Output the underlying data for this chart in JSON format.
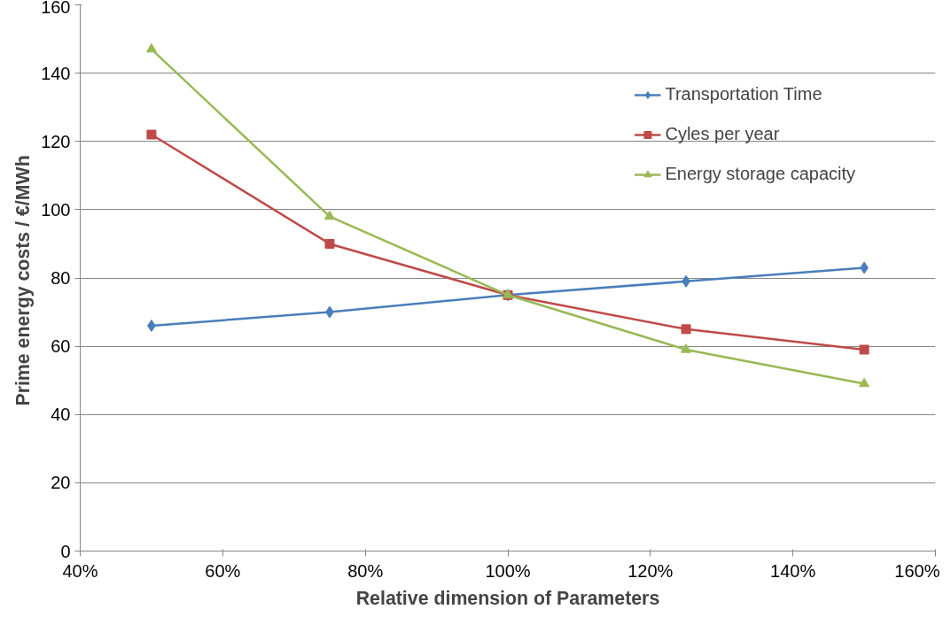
{
  "chart_data": {
    "type": "line",
    "xlabel": "Relative dimension of Parameters",
    "ylabel": "Prime energy costs  / €/MWh",
    "x": [
      50,
      75,
      100,
      125,
      150
    ],
    "series": [
      {
        "name": "Transportation Time",
        "color": "#4a7ebb",
        "marker": "diamond",
        "values": [
          66,
          70,
          75,
          79,
          83
        ]
      },
      {
        "name": "Cyles per year",
        "color": "#be4b48",
        "marker": "square",
        "values": [
          122,
          90,
          75,
          65,
          59
        ]
      },
      {
        "name": "Energy storage capacity",
        "color": "#98b954",
        "marker": "triangle",
        "values": [
          147,
          98,
          75,
          59,
          49
        ]
      }
    ],
    "xlim": [
      40,
      160
    ],
    "ylim": [
      0,
      160
    ],
    "xticks": [
      {
        "value": 40,
        "label": "40%"
      },
      {
        "value": 60,
        "label": "60%"
      },
      {
        "value": 80,
        "label": "80%"
      },
      {
        "value": 100,
        "label": "100%"
      },
      {
        "value": 120,
        "label": "120%"
      },
      {
        "value": 140,
        "label": "140%"
      },
      {
        "value": 160,
        "label": "160%"
      }
    ],
    "yticks": [
      0,
      20,
      40,
      60,
      80,
      100,
      120,
      140,
      160
    ],
    "grid": "y",
    "legend": "top right",
    "line_style": "solid"
  }
}
